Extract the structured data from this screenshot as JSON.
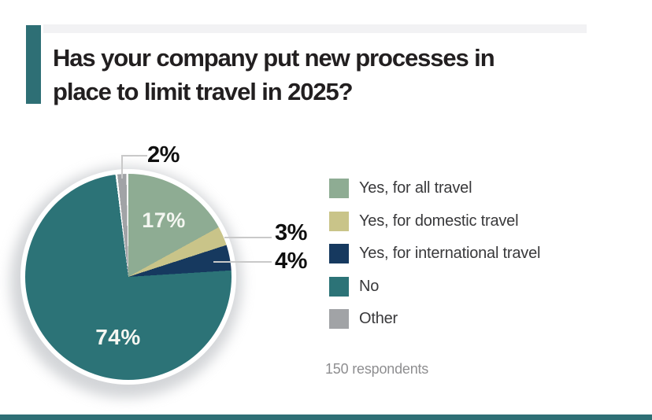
{
  "header": {
    "title_lines": [
      "Has your company put new processes in",
      "place to limit travel in 2025?"
    ],
    "accent_bar_color": "#2E6F75"
  },
  "chart_data": {
    "type": "pie",
    "title": "Has your company put new processes in place to limit travel in 2025?",
    "unit": "%",
    "direction": "clockwise",
    "start_angle_deg": 0,
    "legend_position": "right",
    "slices": [
      {
        "label": "Yes, for all travel",
        "value": 17,
        "pct_label": "17%",
        "color": "#8EAC93",
        "label_placement": "inside"
      },
      {
        "label": "Yes, for domestic travel",
        "value": 3,
        "pct_label": "3%",
        "color": "#C9C489",
        "label_placement": "callout-right"
      },
      {
        "label": "Yes, for international travel",
        "value": 4,
        "pct_label": "4%",
        "color": "#16395F",
        "label_placement": "callout-right"
      },
      {
        "label": "No",
        "value": 74,
        "pct_label": "74%",
        "color": "#2C7377",
        "label_placement": "inside"
      },
      {
        "label": "Other",
        "value": 2,
        "pct_label": "2%",
        "color": "#A1A3A6",
        "label_placement": "callout-top",
        "white_separator": true
      }
    ],
    "note": "150 respondents"
  },
  "footer": {
    "bottom_bar_color": "#2E6F75"
  },
  "colors": {
    "background": "#FFFFFF",
    "top_band": "#F2F2F4",
    "title_text": "#221F20",
    "legend_text": "#39393B",
    "callout_text": "#0F0F0F",
    "callout_line": "#C9C9C9",
    "inside_label_text": "#F4F6F1",
    "note_text": "#8E8E90"
  }
}
